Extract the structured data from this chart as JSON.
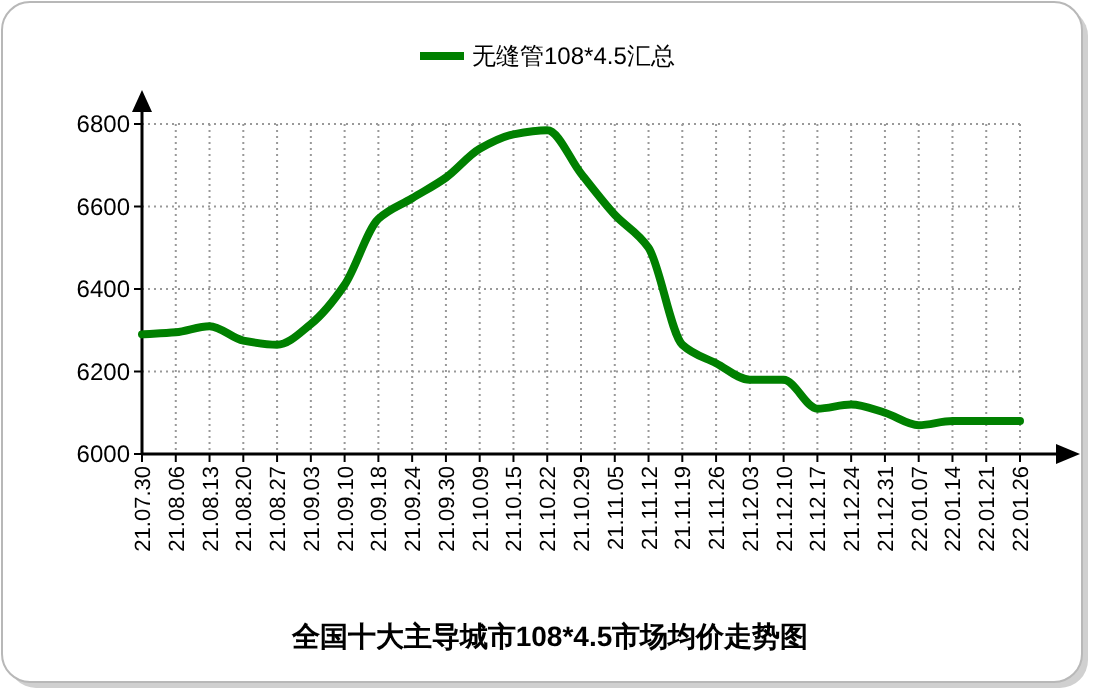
{
  "chart_data": {
    "type": "line",
    "title": "全国十大主导城市108*4.5市场均价走势图",
    "categories": [
      "21.07.30",
      "21.08.06",
      "21.08.13",
      "21.08.20",
      "21.08.27",
      "21.09.03",
      "21.09.10",
      "21.09.18",
      "21.09.24",
      "21.09.30",
      "21.10.09",
      "21.10.15",
      "21.10.22",
      "21.10.29",
      "21.11.05",
      "21.11.12",
      "21.11.19",
      "21.11.26",
      "21.12.03",
      "21.12.10",
      "21.12.17",
      "21.12.24",
      "21.12.31",
      "22.01.07",
      "22.01.14",
      "22.01.21",
      "22.01.26"
    ],
    "series": [
      {
        "name": "无缝管108*4.5汇总",
        "color": "#008000",
        "values": [
          6290,
          6295,
          6310,
          6275,
          6265,
          6315,
          6410,
          6570,
          6620,
          6670,
          6740,
          6775,
          6785,
          6680,
          6580,
          6500,
          6265,
          6220,
          6180,
          6180,
          6110,
          6120,
          6100,
          6070,
          6080,
          6080,
          6080
        ]
      }
    ],
    "ylim": [
      6000,
      6800
    ],
    "yticks": [
      6000,
      6200,
      6400,
      6600,
      6800
    ],
    "grid": true,
    "legend": "top",
    "line_style": "solid"
  }
}
